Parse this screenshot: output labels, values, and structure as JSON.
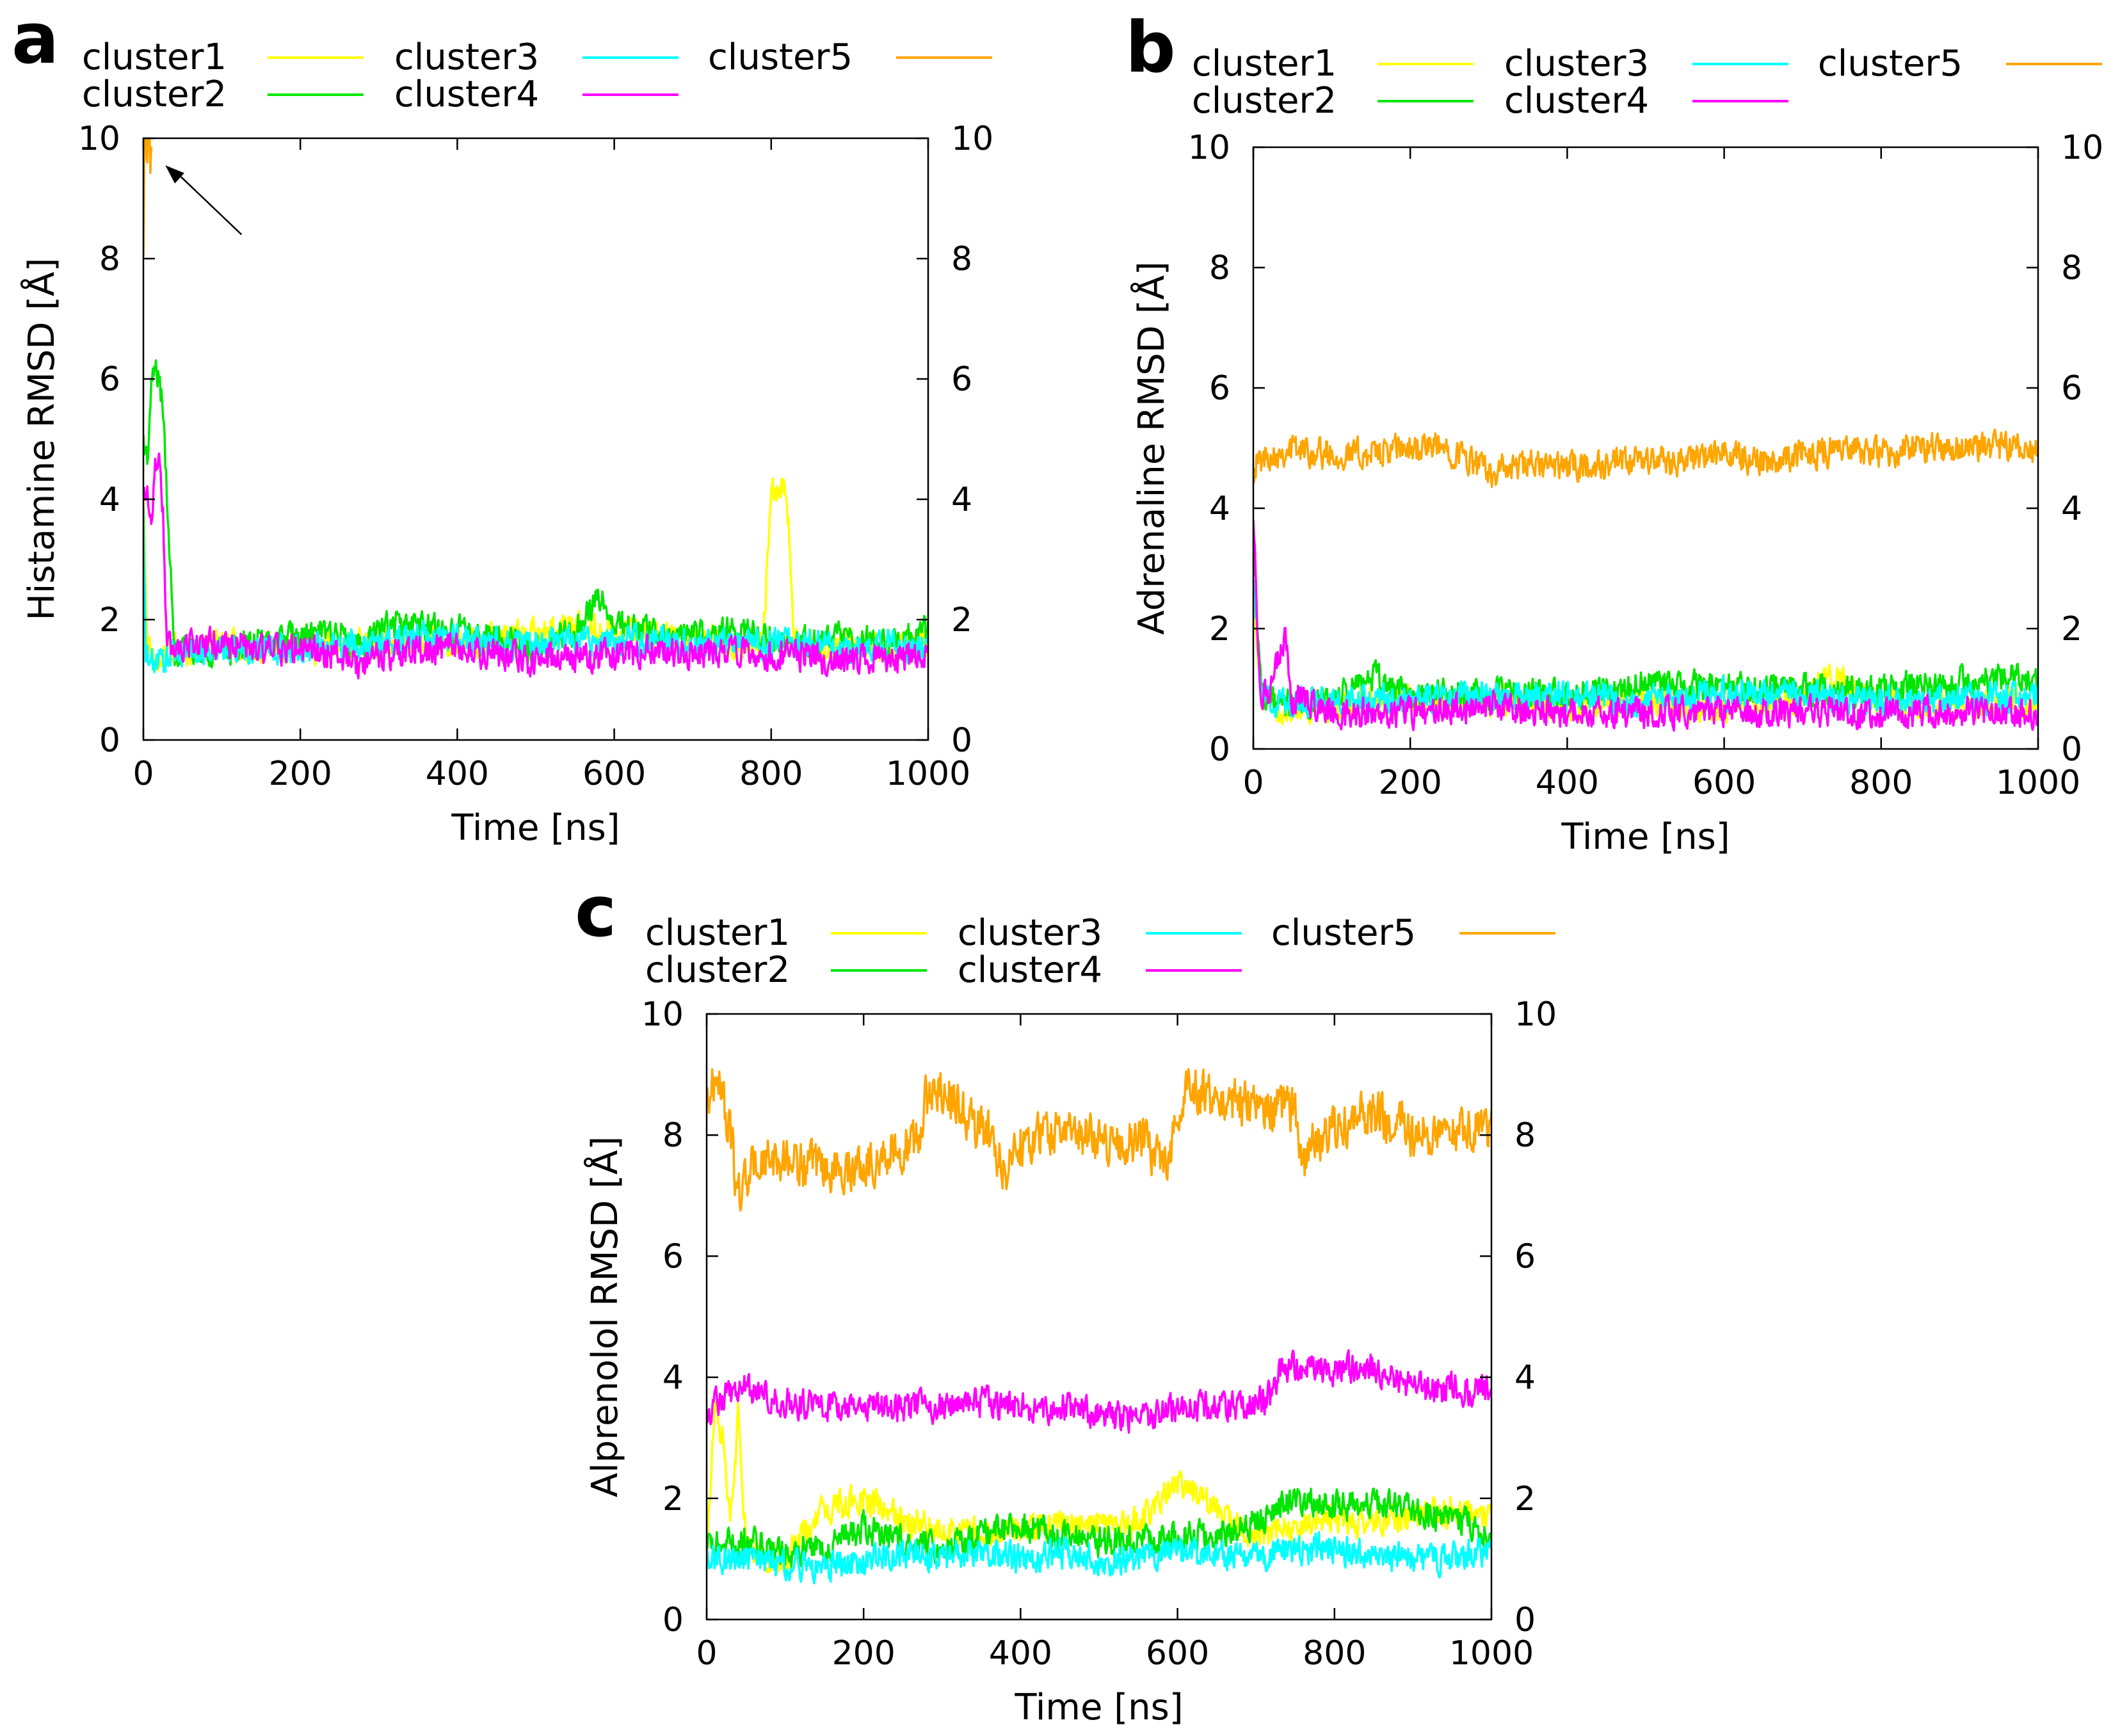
{
  "colors": {
    "cluster1": "#ffff00",
    "cluster2": "#00e600",
    "cluster3": "#00ffff",
    "cluster4": "#ff00ff",
    "cluster5": "#ffa500"
  },
  "chart_data": [
    {
      "panel": "a",
      "type": "line",
      "title": "",
      "xlabel": "Time [ns]",
      "ylabel": "Histamine RMSD [Å]",
      "xlim": [
        0,
        1000
      ],
      "ylim": [
        0,
        10
      ],
      "xticks": [
        "0",
        "200",
        "400",
        "600",
        "800",
        "1000"
      ],
      "yticks": [
        "0",
        "2",
        "4",
        "6",
        "8",
        "10"
      ],
      "legend_position": "top",
      "annotations": [
        "arrow pointing to cluster5 near t=0, RMSD≈10"
      ],
      "series": [
        {
          "name": "cluster1",
          "key": "cluster1",
          "x": [
            0,
            5,
            15,
            30,
            60,
            100,
            150,
            200,
            250,
            300,
            350,
            400,
            450,
            500,
            550,
            600,
            650,
            700,
            750,
            790,
            800,
            810,
            820,
            830,
            860,
            900,
            950,
            1000
          ],
          "y": [
            4.0,
            1.6,
            1.4,
            1.5,
            1.5,
            1.6,
            1.5,
            1.5,
            1.6,
            1.6,
            1.7,
            1.6,
            1.7,
            1.8,
            1.9,
            1.8,
            1.7,
            1.7,
            1.6,
            1.7,
            4.0,
            4.3,
            4.1,
            1.6,
            1.5,
            1.6,
            1.5,
            1.6
          ]
        },
        {
          "name": "cluster2",
          "key": "cluster2",
          "x": [
            0,
            5,
            10,
            15,
            20,
            25,
            30,
            40,
            60,
            100,
            150,
            200,
            250,
            280,
            300,
            350,
            400,
            450,
            500,
            550,
            580,
            600,
            650,
            700,
            750,
            800,
            850,
            900,
            950,
            1000
          ],
          "y": [
            5.0,
            4.6,
            5.8,
            6.2,
            6.0,
            5.5,
            4.0,
            1.5,
            1.5,
            1.5,
            1.6,
            1.7,
            1.8,
            1.4,
            1.9,
            1.9,
            1.8,
            1.7,
            1.5,
            1.8,
            2.4,
            1.9,
            1.8,
            1.7,
            1.8,
            1.7,
            1.6,
            1.7,
            1.6,
            1.8
          ]
        },
        {
          "name": "cluster3",
          "key": "cluster3",
          "x": [
            0,
            3,
            8,
            20,
            50,
            100,
            150,
            200,
            250,
            300,
            350,
            400,
            450,
            500,
            550,
            600,
            650,
            700,
            750,
            800,
            850,
            900,
            950,
            1000
          ],
          "y": [
            3.8,
            1.4,
            1.3,
            1.3,
            1.5,
            1.5,
            1.5,
            1.5,
            1.6,
            1.6,
            1.7,
            1.7,
            1.6,
            1.6,
            1.7,
            1.6,
            1.7,
            1.6,
            1.6,
            1.6,
            1.6,
            1.5,
            1.6,
            1.5
          ]
        },
        {
          "name": "cluster4",
          "key": "cluster4",
          "x": [
            0,
            5,
            10,
            15,
            20,
            25,
            30,
            50,
            100,
            150,
            200,
            250,
            280,
            300,
            350,
            400,
            450,
            500,
            550,
            600,
            650,
            700,
            750,
            800,
            850,
            900,
            950,
            1000
          ],
          "y": [
            4.0,
            4.2,
            3.6,
            4.5,
            4.8,
            3.8,
            1.5,
            1.6,
            1.6,
            1.5,
            1.5,
            1.4,
            1.2,
            1.4,
            1.5,
            1.5,
            1.4,
            1.3,
            1.4,
            1.4,
            1.5,
            1.4,
            1.5,
            1.4,
            1.4,
            1.3,
            1.4,
            1.4
          ]
        },
        {
          "name": "cluster5",
          "key": "cluster5",
          "x": [
            0,
            1,
            2,
            3,
            4,
            5,
            6,
            7,
            8,
            9,
            10
          ],
          "y": [
            8.0,
            9.5,
            10.0,
            9.8,
            10.0,
            9.7,
            10.0,
            9.9,
            10.0,
            9.6,
            10.0
          ]
        }
      ]
    },
    {
      "panel": "b",
      "type": "line",
      "title": "",
      "xlabel": "Time [ns]",
      "ylabel": "Adrenaline RMSD [Å]",
      "xlim": [
        0,
        1000
      ],
      "ylim": [
        0,
        10
      ],
      "xticks": [
        "0",
        "200",
        "400",
        "600",
        "800",
        "1000"
      ],
      "yticks": [
        "0",
        "2",
        "4",
        "6",
        "8",
        "10"
      ],
      "legend_position": "top",
      "series": [
        {
          "name": "cluster1",
          "key": "cluster1",
          "x": [
            0,
            10,
            30,
            100,
            200,
            300,
            400,
            500,
            600,
            700,
            730,
            800,
            900,
            1000
          ],
          "y": [
            2.5,
            0.8,
            0.7,
            0.7,
            0.8,
            0.8,
            0.7,
            0.8,
            0.7,
            0.8,
            1.2,
            0.8,
            0.7,
            0.8
          ]
        },
        {
          "name": "cluster2",
          "key": "cluster2",
          "x": [
            0,
            10,
            30,
            100,
            150,
            200,
            300,
            400,
            500,
            600,
            700,
            800,
            900,
            1000
          ],
          "y": [
            3.5,
            1.0,
            0.7,
            0.8,
            1.2,
            0.9,
            0.9,
            0.9,
            1.1,
            1.0,
            1.0,
            1.0,
            1.1,
            1.2
          ]
        },
        {
          "name": "cluster3",
          "key": "cluster3",
          "x": [
            0,
            10,
            30,
            100,
            200,
            300,
            400,
            500,
            600,
            700,
            800,
            900,
            1000
          ],
          "y": [
            3.0,
            0.8,
            0.8,
            0.8,
            0.8,
            0.9,
            0.9,
            0.8,
            0.9,
            0.9,
            0.8,
            0.8,
            0.9
          ]
        },
        {
          "name": "cluster4",
          "key": "cluster4",
          "x": [
            0,
            5,
            10,
            20,
            40,
            50,
            60,
            100,
            200,
            300,
            400,
            500,
            600,
            700,
            800,
            900,
            1000
          ],
          "y": [
            4.0,
            2.0,
            1.0,
            0.8,
            1.9,
            0.7,
            0.9,
            0.6,
            0.6,
            0.7,
            0.6,
            0.6,
            0.6,
            0.6,
            0.6,
            0.6,
            0.6
          ]
        },
        {
          "name": "cluster5",
          "key": "cluster5",
          "x": [
            0,
            20,
            50,
            100,
            150,
            200,
            250,
            300,
            350,
            400,
            450,
            500,
            550,
            600,
            650,
            700,
            750,
            800,
            850,
            900,
            950,
            1000
          ],
          "y": [
            4.7,
            4.9,
            5.0,
            4.9,
            4.9,
            5.0,
            5.0,
            4.6,
            4.7,
            4.7,
            4.7,
            4.8,
            4.8,
            4.9,
            4.8,
            4.9,
            5.0,
            4.9,
            5.0,
            5.0,
            5.0,
            4.9
          ]
        }
      ]
    },
    {
      "panel": "c",
      "type": "line",
      "title": "",
      "xlabel": "Time [ns]",
      "ylabel": "Alprenolol RMSD [Å]",
      "xlim": [
        0,
        1000
      ],
      "ylim": [
        0,
        10
      ],
      "xticks": [
        "0",
        "200",
        "400",
        "600",
        "800",
        "1000"
      ],
      "yticks": [
        "0",
        "2",
        "4",
        "6",
        "8",
        "10"
      ],
      "legend_position": "top",
      "series": [
        {
          "name": "cluster1",
          "key": "cluster1",
          "x": [
            0,
            10,
            20,
            30,
            40,
            50,
            80,
            100,
            150,
            200,
            250,
            300,
            350,
            400,
            450,
            500,
            550,
            600,
            650,
            700,
            750,
            800,
            850,
            900,
            950,
            1000
          ],
          "y": [
            1.2,
            3.5,
            3.0,
            1.5,
            3.3,
            1.2,
            1.0,
            1.0,
            1.8,
            2.0,
            1.6,
            1.5,
            1.4,
            1.5,
            1.6,
            1.5,
            1.6,
            2.3,
            1.8,
            1.4,
            1.5,
            1.7,
            1.6,
            1.7,
            1.8,
            1.8
          ]
        },
        {
          "name": "cluster2",
          "key": "cluster2",
          "x": [
            0,
            50,
            100,
            150,
            200,
            250,
            300,
            350,
            400,
            450,
            500,
            550,
            600,
            650,
            700,
            750,
            800,
            850,
            900,
            950,
            1000
          ],
          "y": [
            1.2,
            1.3,
            1.1,
            1.2,
            1.5,
            1.3,
            1.2,
            1.4,
            1.6,
            1.4,
            1.3,
            1.3,
            1.4,
            1.4,
            1.6,
            2.0,
            1.9,
            1.9,
            1.8,
            1.7,
            1.4
          ]
        },
        {
          "name": "cluster3",
          "key": "cluster3",
          "x": [
            0,
            50,
            100,
            150,
            200,
            250,
            300,
            350,
            400,
            450,
            500,
            550,
            600,
            650,
            700,
            750,
            800,
            850,
            900,
            950,
            1000
          ],
          "y": [
            1.0,
            1.0,
            0.9,
            0.9,
            1.0,
            1.1,
            1.0,
            1.1,
            1.0,
            1.1,
            1.0,
            1.0,
            1.1,
            1.0,
            1.1,
            1.1,
            1.2,
            1.0,
            1.0,
            1.0,
            1.2
          ]
        },
        {
          "name": "cluster4",
          "key": "cluster4",
          "x": [
            0,
            20,
            50,
            100,
            150,
            200,
            250,
            300,
            350,
            400,
            450,
            500,
            550,
            600,
            650,
            700,
            720,
            730,
            750,
            800,
            850,
            900,
            950,
            1000
          ],
          "y": [
            3.4,
            3.7,
            3.8,
            3.6,
            3.5,
            3.5,
            3.5,
            3.5,
            3.6,
            3.5,
            3.5,
            3.4,
            3.3,
            3.5,
            3.5,
            3.6,
            3.7,
            4.1,
            4.2,
            4.1,
            4.2,
            3.8,
            3.8,
            3.8
          ]
        },
        {
          "name": "cluster5",
          "key": "cluster5",
          "x": [
            0,
            15,
            30,
            40,
            60,
            100,
            150,
            200,
            250,
            270,
            280,
            300,
            330,
            360,
            380,
            400,
            450,
            500,
            550,
            590,
            600,
            610,
            650,
            700,
            750,
            760,
            770,
            800,
            850,
            900,
            950,
            1000
          ],
          "y": [
            8.6,
            9.0,
            8.0,
            7.0,
            7.5,
            7.6,
            7.4,
            7.5,
            7.8,
            7.9,
            8.6,
            8.8,
            8.3,
            8.0,
            7.4,
            7.9,
            8.1,
            7.9,
            7.9,
            7.6,
            8.5,
            8.8,
            8.6,
            8.5,
            8.4,
            7.5,
            7.9,
            8.1,
            8.4,
            8.0,
            8.1,
            8.1
          ]
        }
      ]
    }
  ],
  "legend_items": [
    "cluster1",
    "cluster2",
    "cluster3",
    "cluster4",
    "cluster5"
  ]
}
